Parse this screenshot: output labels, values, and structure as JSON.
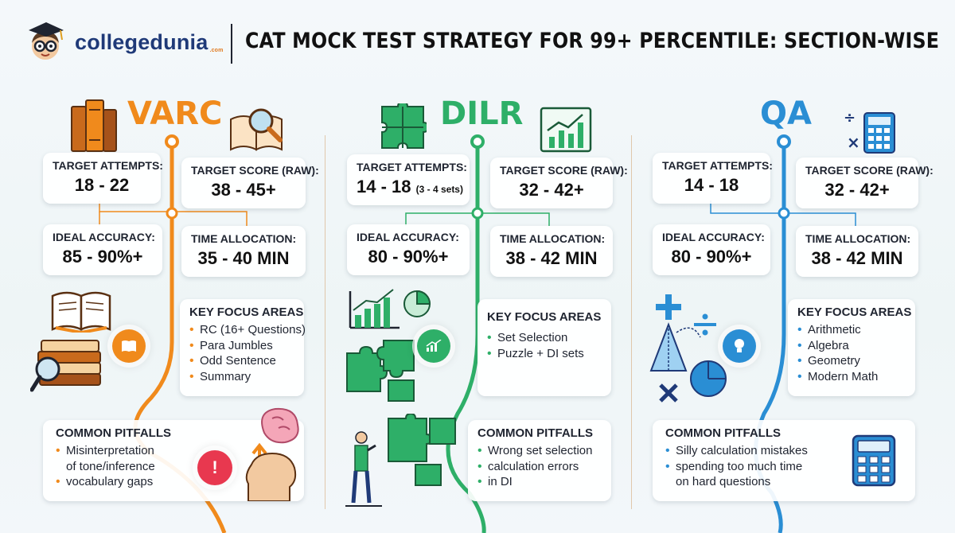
{
  "header": {
    "brand": "collegedunia",
    "brand_suffix": ".com",
    "title": "CAT MOCK TEST STRATEGY FOR 99+  PERCENTILE: SECTION-WISE"
  },
  "colors": {
    "varc": "#f08a1c",
    "dilr": "#2eaf68",
    "qa": "#2a8ed4"
  },
  "sections": {
    "varc": {
      "name": "VARC",
      "target_attempts_label": "TARGET ATTEMPTS:",
      "target_attempts": "18 - 22",
      "target_score_label": "TARGET SCORE (RAW):",
      "target_score": "38 - 45+",
      "accuracy_label": "IDEAL ACCURACY:",
      "accuracy": "85 - 90%+",
      "time_label": "TIME ALLOCATION:",
      "time": "35 - 40 MIN",
      "focus_title": "KEY FOCUS AREAS",
      "focus": [
        "RC (16+ Questions)",
        "Para Jumbles",
        "Odd Sentence",
        "Summary"
      ],
      "pitfalls_title": "COMMON PITFALLS",
      "pitfalls": [
        "Misinterpretation",
        "of tone/inference",
        "vocabulary gaps"
      ],
      "icons": [
        "books-icon",
        "magnifier-book-icon",
        "open-book-icon",
        "book-stack-icon",
        "book-badge-icon",
        "alert-badge-icon",
        "brain-head-icon"
      ]
    },
    "dilr": {
      "name": "DILR",
      "target_attempts_label": "TARGET ATTEMPTS:",
      "target_attempts": "14 - 18",
      "target_attempts_note": "(3 - 4 sets)",
      "target_score_label": "TARGET SCORE (RAW):",
      "target_score": "32 - 42+",
      "accuracy_label": "IDEAL ACCURACY:",
      "accuracy": "80 - 90%+",
      "time_label": "TIME ALLOCATION:",
      "time": "38 - 42 MIN",
      "focus_title": "KEY FOCUS AREAS",
      "focus": [
        "Set Selection",
        "Puzzle + DI sets"
      ],
      "pitfalls_title": "COMMON PITFALLS",
      "pitfalls": [
        "Wrong set selection",
        "calculation errors",
        "in DI"
      ],
      "icons": [
        "puzzle-icon",
        "chart-board-icon",
        "bar-pie-chart-icon",
        "puzzle-pieces-icon",
        "chart-badge-icon",
        "presenter-icon"
      ]
    },
    "qa": {
      "name": "QA",
      "target_attempts_label": "TARGET ATTEMPTS:",
      "target_attempts": "14 - 18",
      "target_score_label": "TARGET SCORE (RAW):",
      "target_score": "32 - 42+",
      "accuracy_label": "IDEAL ACCURACY:",
      "accuracy": "80 - 90%+",
      "time_label": "TIME ALLOCATION:",
      "time": "38 - 42 MIN",
      "focus_title": "KEY FOCUS AREAS",
      "focus": [
        "Arithmetic",
        "Algebra",
        "Geometry",
        "Modern Math"
      ],
      "pitfalls_title": "COMMON PITFALLS",
      "pitfalls": [
        "Silly calculation mistakes",
        "spending too much time",
        "on hard questions"
      ],
      "icons": [
        "math-calculator-icon",
        "math-symbols-icon",
        "lightbulb-badge-icon",
        "calculator-icon"
      ]
    }
  }
}
